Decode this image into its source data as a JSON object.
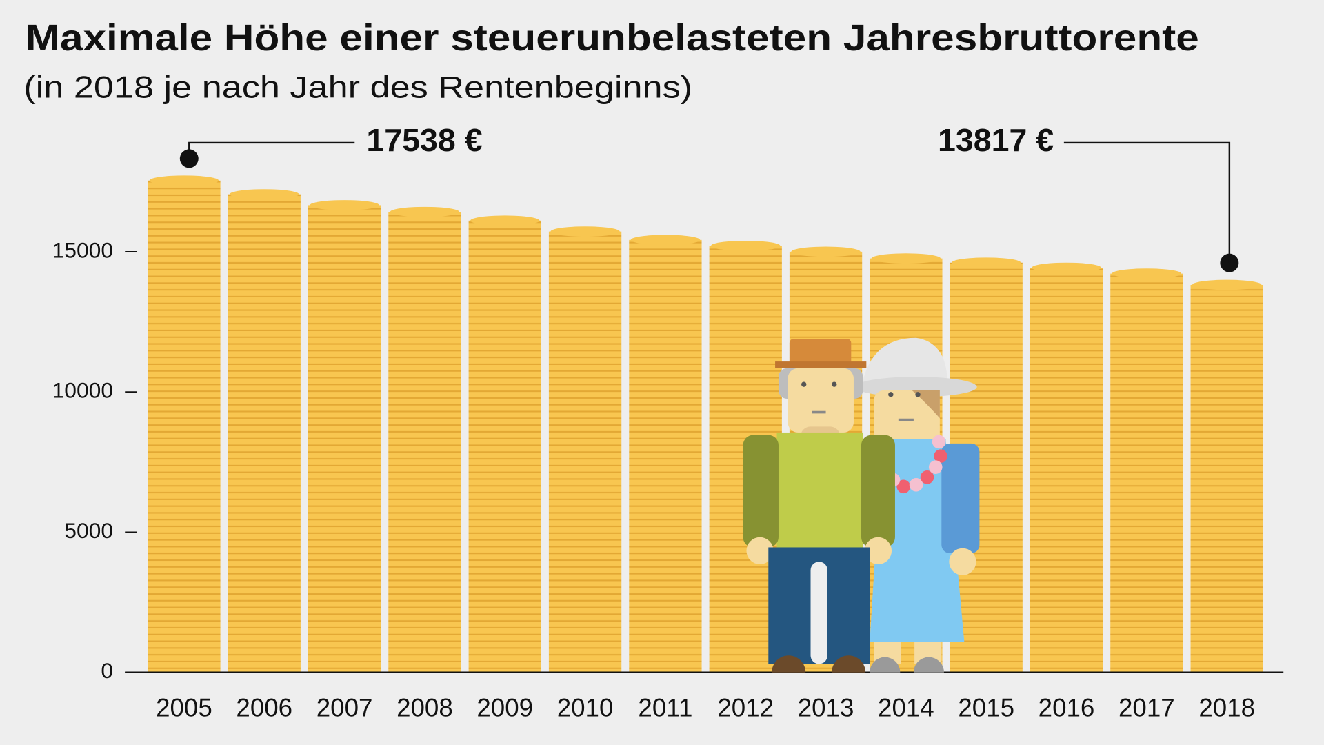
{
  "chart_data": {
    "type": "coin-bar",
    "title": "Maximale Höhe einer steuerunbelasteten Jahresbruttorente",
    "subtitle": "(in 2018 je nach Jahr des Rentenbeginns)",
    "categories": [
      "2005",
      "2006",
      "2007",
      "2008",
      "2009",
      "2010",
      "2011",
      "2012",
      "2013",
      "2014",
      "2015",
      "2016",
      "2017",
      "2018"
    ],
    "values": [
      17538,
      17050,
      16660,
      16420,
      16110,
      15720,
      15420,
      15210,
      15000,
      14760,
      14610,
      14430,
      14220,
      13817
    ],
    "value_labels": [
      "17538 €",
      null,
      null,
      null,
      null,
      null,
      null,
      null,
      null,
      null,
      null,
      null,
      null,
      "13817 €"
    ],
    "color": "#f8c650",
    "ylim": [
      0,
      18000
    ],
    "yticks": [
      0,
      5000,
      10000,
      15000
    ],
    "grid": false
  }
}
